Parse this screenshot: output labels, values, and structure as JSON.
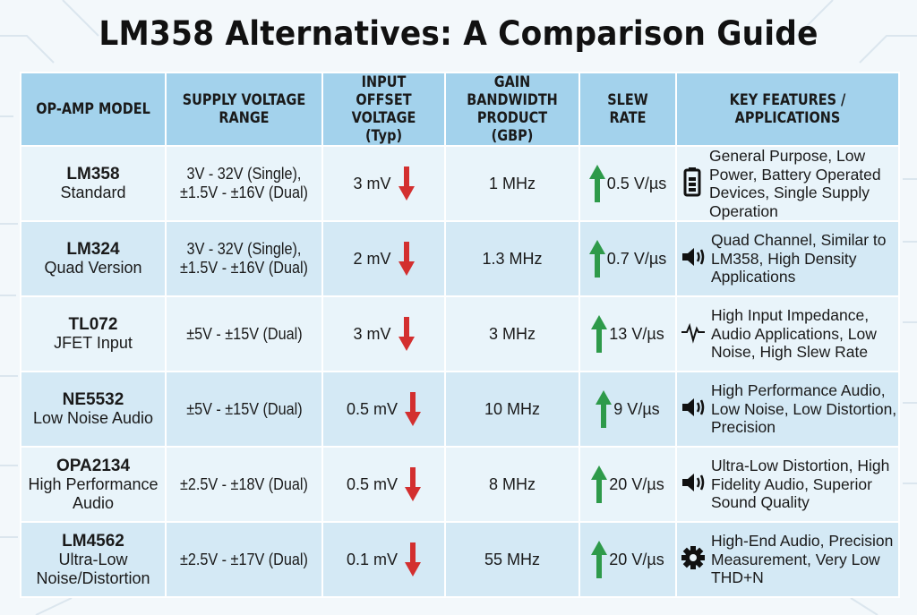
{
  "title": "LM358 Alternatives: A Comparison Guide",
  "headers": [
    "OP-AMP MODEL",
    "SUPPLY VOLTAGE RANGE",
    "INPUT OFFSET VOLTAGE (Typ)",
    "GAIN BANDWIDTH PRODUCT (GBP)",
    "SLEW RATE",
    "KEY FEATURES / APPLICATIONS"
  ],
  "colors": {
    "header": "#a3d2ec",
    "row_light": "#e9f4fa",
    "row_dark": "#d4e9f5",
    "down_arrow": "#d32f2f",
    "up_arrow": "#2e9a4a"
  },
  "rows": [
    {
      "model": "LM358",
      "subtitle": "Standard",
      "supply": "3V - 32V (Single), ±1.5V - ±16V (Dual)",
      "offset": "3 mV",
      "gbp": "1 MHz",
      "slew": "0.5 V/µs",
      "icon": "battery-icon",
      "features": "General Purpose, Low Power, Battery Operated Devices, Single Supply Operation"
    },
    {
      "model": "LM324",
      "subtitle": "Quad Version",
      "supply": "3V - 32V (Single), ±1.5V - ±16V (Dual)",
      "offset": "2 mV",
      "gbp": "1.3 MHz",
      "slew": "0.7 V/µs",
      "icon": "speaker-icon",
      "features": "Quad Channel, Similar to LM358, High Density Applications"
    },
    {
      "model": "TL072",
      "subtitle": "JFET Input",
      "supply": "±5V - ±15V (Dual)",
      "offset": "3 mV",
      "gbp": "3 MHz",
      "slew": "13 V/µs",
      "icon": "waveform-icon",
      "features": "High Input Impedance, Audio Applications, Low Noise, High Slew Rate"
    },
    {
      "model": "NE5532",
      "subtitle": "Low Noise Audio",
      "supply": "±5V - ±15V (Dual)",
      "offset": "0.5 mV",
      "gbp": "10 MHz",
      "slew": "9 V/µs",
      "icon": "speaker-icon",
      "features": "High Performance Audio, Low Noise, Low Distortion, Precision"
    },
    {
      "model": "OPA2134",
      "subtitle": "High Performance Audio",
      "supply": "±2.5V - ±18V (Dual)",
      "offset": "0.5 mV",
      "gbp": "8 MHz",
      "slew": "20 V/µs",
      "icon": "speaker-icon",
      "features": "Ultra-Low Distortion, High Fidelity Audio, Superior Sound Quality"
    },
    {
      "model": "LM4562",
      "subtitle": "Ultra-Low Noise/Distortion",
      "supply": "±2.5V - ±17V (Dual)",
      "offset": "0.1 mV",
      "gbp": "55 MHz",
      "slew": "20 V/µs",
      "icon": "gear-icon",
      "features": "High-End Audio, Precision Measurement, Very Low THD+N"
    }
  ]
}
